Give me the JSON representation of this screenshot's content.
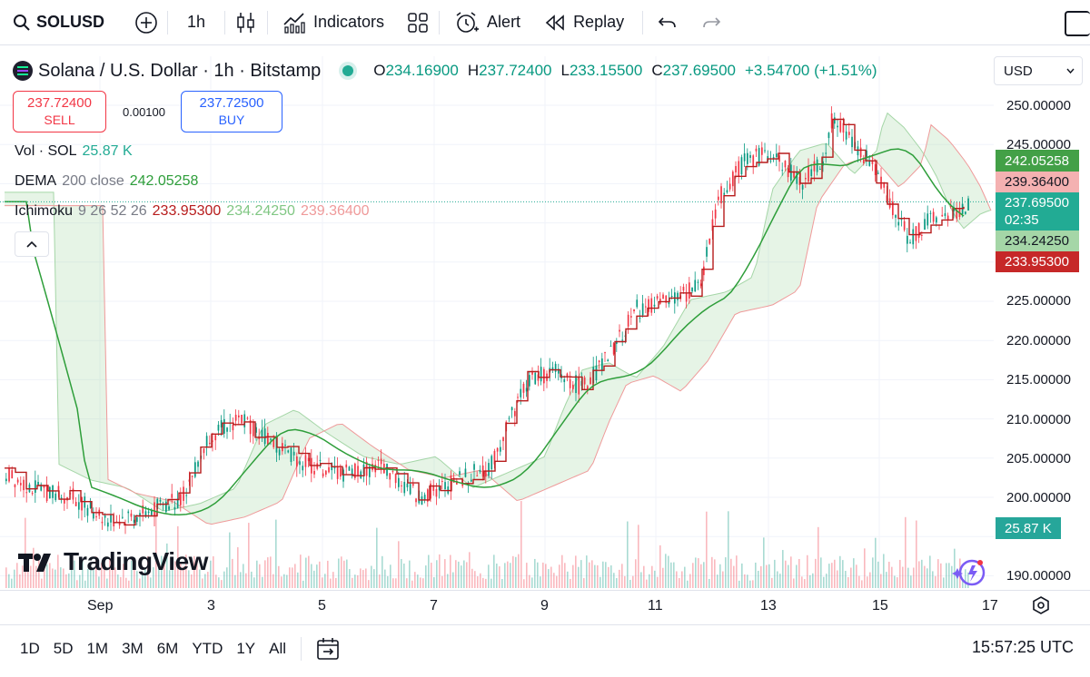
{
  "toolbar": {
    "symbol": "SOLUSD",
    "interval": "1h",
    "indicators_label": "Indicators",
    "alert_label": "Alert",
    "replay_label": "Replay"
  },
  "legend": {
    "title": "Solana / U.S. Dollar · 1h · Bitstamp",
    "ohlc": [
      {
        "k": "O",
        "v": "234.16900"
      },
      {
        "k": "H",
        "v": "237.72400"
      },
      {
        "k": "L",
        "v": "233.15500"
      },
      {
        "k": "C",
        "v": "237.69500"
      }
    ],
    "change": "+3.54700 (+1.51%)"
  },
  "trade": {
    "sell_price": "237.72400",
    "sell_label": "SELL",
    "spread": "0.00100",
    "buy_price": "237.72500",
    "buy_label": "BUY"
  },
  "indicators": {
    "vol_name": "Vol · SOL",
    "vol_value": "25.87 K",
    "dema_name": "DEMA",
    "dema_params": "200 close",
    "dema_value": "242.05258",
    "ichimoku_name": "Ichimoku",
    "ichimoku_params": "9 26 52 26",
    "ichimoku_v1": "233.95300",
    "ichimoku_v2": "234.24250",
    "ichimoku_v3": "239.36400"
  },
  "price_scale": {
    "currency": "USD",
    "ticks": [
      "250.00000",
      "245.00000",
      "225.00000",
      "220.00000",
      "215.00000",
      "210.00000",
      "205.00000",
      "200.00000",
      "190.00000"
    ],
    "labels": {
      "dema": "242.05258",
      "span_b": "239.36400",
      "last": "237.69500",
      "countdown": "02:35",
      "span_a": "234.24250",
      "conversion": "233.95300",
      "volume": "25.87 K"
    }
  },
  "time_axis": [
    "Sep",
    "3",
    "5",
    "7",
    "9",
    "11",
    "13",
    "15",
    "17"
  ],
  "ranges": [
    "1D",
    "5D",
    "1M",
    "3M",
    "6M",
    "YTD",
    "1Y",
    "All"
  ],
  "clock": "15:57:25 UTC",
  "brand": "TradingView",
  "colors": {
    "up": "#089981",
    "down": "#f23645",
    "dema": "#2e9e3a",
    "conversion": "#b71c1c",
    "cloud_up": "#a5d6a7",
    "cloud_down": "#ef9a9a"
  }
}
